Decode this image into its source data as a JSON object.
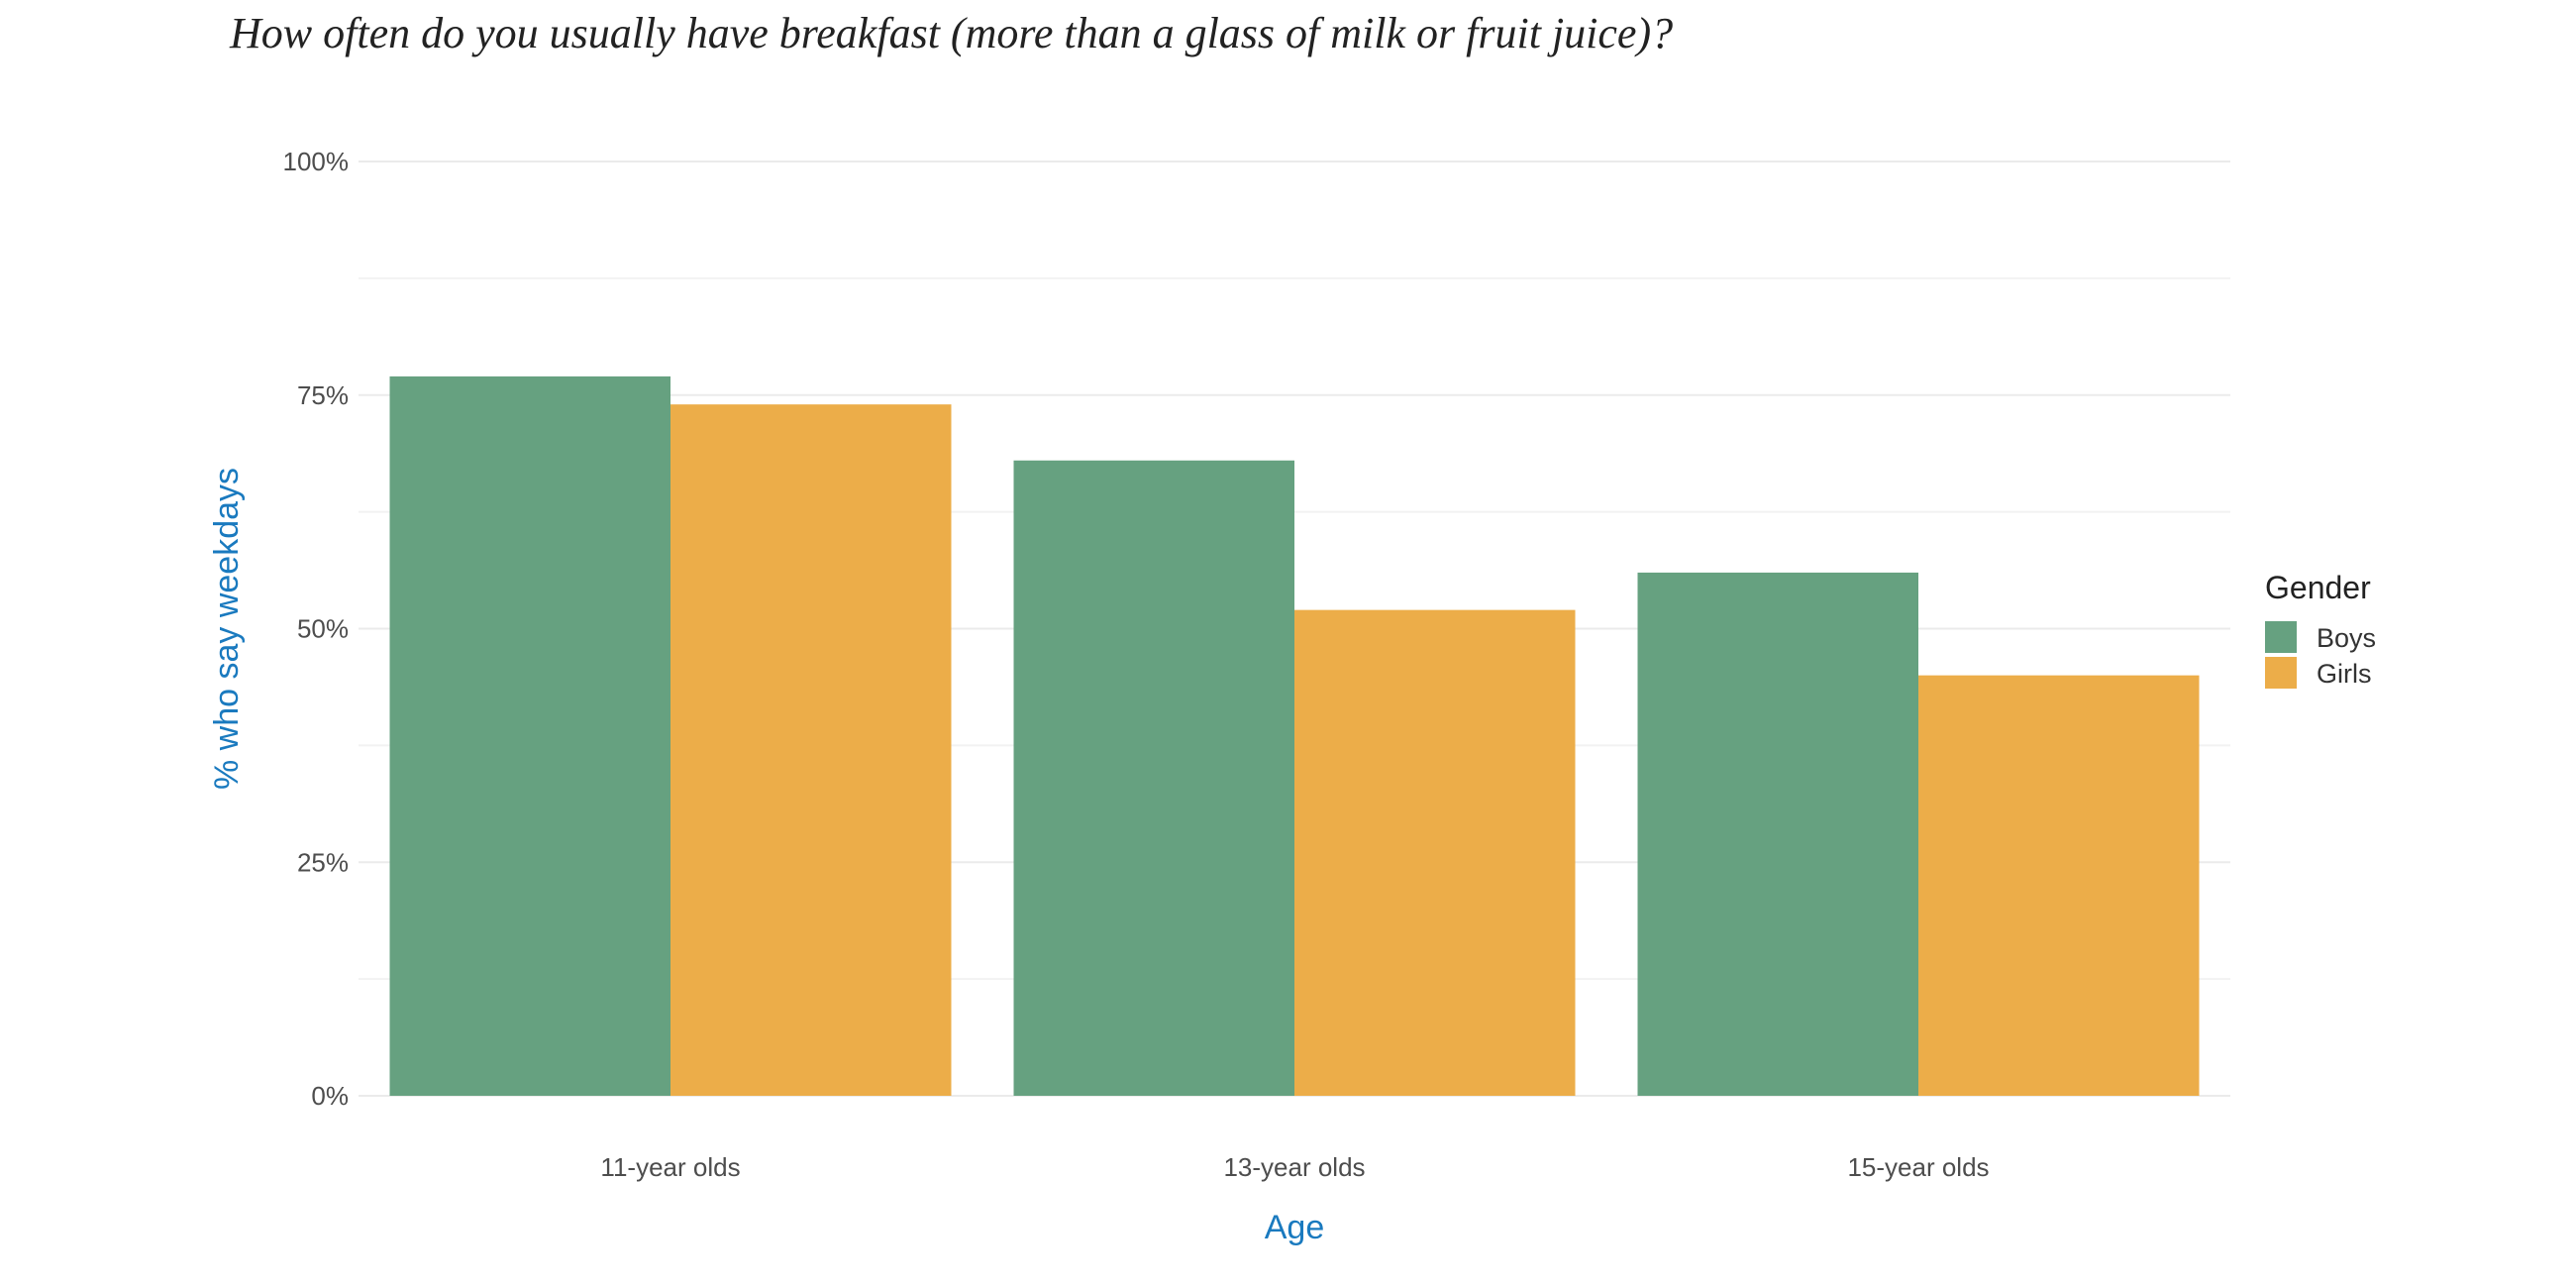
{
  "chart_data": {
    "type": "bar",
    "title": "How often do you usually have breakfast (more than a glass of milk or fruit juice)?",
    "xlabel": "Age",
    "ylabel": "% who say weekdays",
    "categories": [
      "11-year olds",
      "13-year olds",
      "15-year olds"
    ],
    "series": [
      {
        "name": "Boys",
        "color": "#66a180",
        "values": [
          77,
          68,
          56
        ]
      },
      {
        "name": "Girls",
        "color": "#ecad49",
        "values": [
          74,
          52,
          45
        ]
      }
    ],
    "ylim": [
      0,
      100
    ],
    "yticks": [
      0,
      25,
      50,
      75,
      100
    ],
    "ytick_labels": [
      "0%",
      "25%",
      "50%",
      "75%",
      "100%"
    ],
    "grid": true,
    "legend": {
      "title": "Gender",
      "position": "right"
    },
    "colors": {
      "axis_title": "#1a7abf",
      "grid": "#ebebeb"
    }
  }
}
